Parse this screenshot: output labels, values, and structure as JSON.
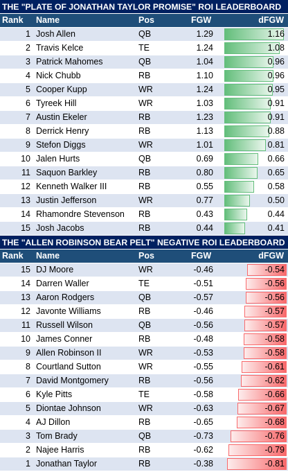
{
  "positive": {
    "title": "THE \"PLATE OF JONATHAN TAYLOR PROMISE\" ROI LEADERBOARD",
    "headers": {
      "rank": "Rank",
      "name": "Name",
      "pos": "Pos",
      "fgw": "FGW",
      "dfgw": "dFGW"
    },
    "rows": [
      {
        "rank": "1",
        "name": "Josh Allen",
        "pos": "QB",
        "fgw": "1.29",
        "dfgw": "1.16"
      },
      {
        "rank": "2",
        "name": "Travis Kelce",
        "pos": "TE",
        "fgw": "1.24",
        "dfgw": "1.08"
      },
      {
        "rank": "3",
        "name": "Patrick Mahomes",
        "pos": "QB",
        "fgw": "1.04",
        "dfgw": "0.96"
      },
      {
        "rank": "4",
        "name": "Nick Chubb",
        "pos": "RB",
        "fgw": "1.10",
        "dfgw": "0.96"
      },
      {
        "rank": "5",
        "name": "Cooper Kupp",
        "pos": "WR",
        "fgw": "1.24",
        "dfgw": "0.95"
      },
      {
        "rank": "6",
        "name": "Tyreek Hill",
        "pos": "WR",
        "fgw": "1.03",
        "dfgw": "0.91"
      },
      {
        "rank": "7",
        "name": "Austin Ekeler",
        "pos": "RB",
        "fgw": "1.23",
        "dfgw": "0.91"
      },
      {
        "rank": "8",
        "name": "Derrick Henry",
        "pos": "RB",
        "fgw": "1.13",
        "dfgw": "0.88"
      },
      {
        "rank": "9",
        "name": "Stefon Diggs",
        "pos": "WR",
        "fgw": "1.01",
        "dfgw": "0.81"
      },
      {
        "rank": "10",
        "name": "Jalen Hurts",
        "pos": "QB",
        "fgw": "0.69",
        "dfgw": "0.66"
      },
      {
        "rank": "11",
        "name": "Saquon Barkley",
        "pos": "RB",
        "fgw": "0.80",
        "dfgw": "0.65"
      },
      {
        "rank": "12",
        "name": "Kenneth Walker III",
        "pos": "RB",
        "fgw": "0.55",
        "dfgw": "0.58"
      },
      {
        "rank": "13",
        "name": "Justin Jefferson",
        "pos": "WR",
        "fgw": "0.77",
        "dfgw": "0.50"
      },
      {
        "rank": "14",
        "name": "Rhamondre Stevenson",
        "pos": "RB",
        "fgw": "0.43",
        "dfgw": "0.44"
      },
      {
        "rank": "15",
        "name": "Josh Jacobs",
        "pos": "RB",
        "fgw": "0.44",
        "dfgw": "0.41"
      }
    ]
  },
  "negative": {
    "title": "THE \"ALLEN ROBINSON BEAR PELT\" NEGATIVE ROI LEADERBOARD",
    "headers": {
      "rank": "Rank",
      "name": "Name",
      "pos": "Pos",
      "fgw": "FGW",
      "dfgw": "dFGW"
    },
    "rows": [
      {
        "rank": "15",
        "name": "DJ Moore",
        "pos": "WR",
        "fgw": "-0.46",
        "dfgw": "-0.54"
      },
      {
        "rank": "14",
        "name": "Darren Waller",
        "pos": "TE",
        "fgw": "-0.51",
        "dfgw": "-0.56"
      },
      {
        "rank": "13",
        "name": "Aaron Rodgers",
        "pos": "QB",
        "fgw": "-0.57",
        "dfgw": "-0.56"
      },
      {
        "rank": "12",
        "name": "Javonte Williams",
        "pos": "RB",
        "fgw": "-0.46",
        "dfgw": "-0.57"
      },
      {
        "rank": "11",
        "name": "Russell Wilson",
        "pos": "QB",
        "fgw": "-0.56",
        "dfgw": "-0.57"
      },
      {
        "rank": "10",
        "name": "James Conner",
        "pos": "RB",
        "fgw": "-0.48",
        "dfgw": "-0.58"
      },
      {
        "rank": "9",
        "name": "Allen Robinson II",
        "pos": "WR",
        "fgw": "-0.53",
        "dfgw": "-0.58"
      },
      {
        "rank": "8",
        "name": "Courtland Sutton",
        "pos": "WR",
        "fgw": "-0.55",
        "dfgw": "-0.61"
      },
      {
        "rank": "7",
        "name": "David Montgomery",
        "pos": "RB",
        "fgw": "-0.56",
        "dfgw": "-0.62"
      },
      {
        "rank": "6",
        "name": "Kyle Pitts",
        "pos": "TE",
        "fgw": "-0.58",
        "dfgw": "-0.66"
      },
      {
        "rank": "5",
        "name": "Diontae Johnson",
        "pos": "WR",
        "fgw": "-0.63",
        "dfgw": "-0.67"
      },
      {
        "rank": "4",
        "name": "AJ Dillon",
        "pos": "RB",
        "fgw": "-0.65",
        "dfgw": "-0.68"
      },
      {
        "rank": "3",
        "name": "Tom Brady",
        "pos": "QB",
        "fgw": "-0.73",
        "dfgw": "-0.76"
      },
      {
        "rank": "2",
        "name": "Najee Harris",
        "pos": "RB",
        "fgw": "-0.62",
        "dfgw": "-0.79"
      },
      {
        "rank": "1",
        "name": "Jonathan Taylor",
        "pos": "RB",
        "fgw": "-0.38",
        "dfgw": "-0.81"
      }
    ]
  },
  "colors": {
    "title_bg": "#002060",
    "header_bg": "#1f4e79",
    "alt_row": "#dde4f1",
    "positive_bar": "#63be7b",
    "negative_bar": "#f8696b"
  }
}
